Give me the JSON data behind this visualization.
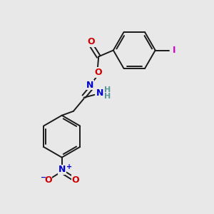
{
  "bg_color": "#e8e8e8",
  "bond_color": "#1a1a1a",
  "bond_width": 1.4,
  "atom_colors": {
    "N": "#0000cc",
    "O": "#cc0000",
    "I": "#cc00cc",
    "H": "#5a9a9a",
    "plus": "#0000cc",
    "minus": "#0000cc"
  },
  "figsize": [
    3.0,
    3.0
  ],
  "dpi": 100
}
